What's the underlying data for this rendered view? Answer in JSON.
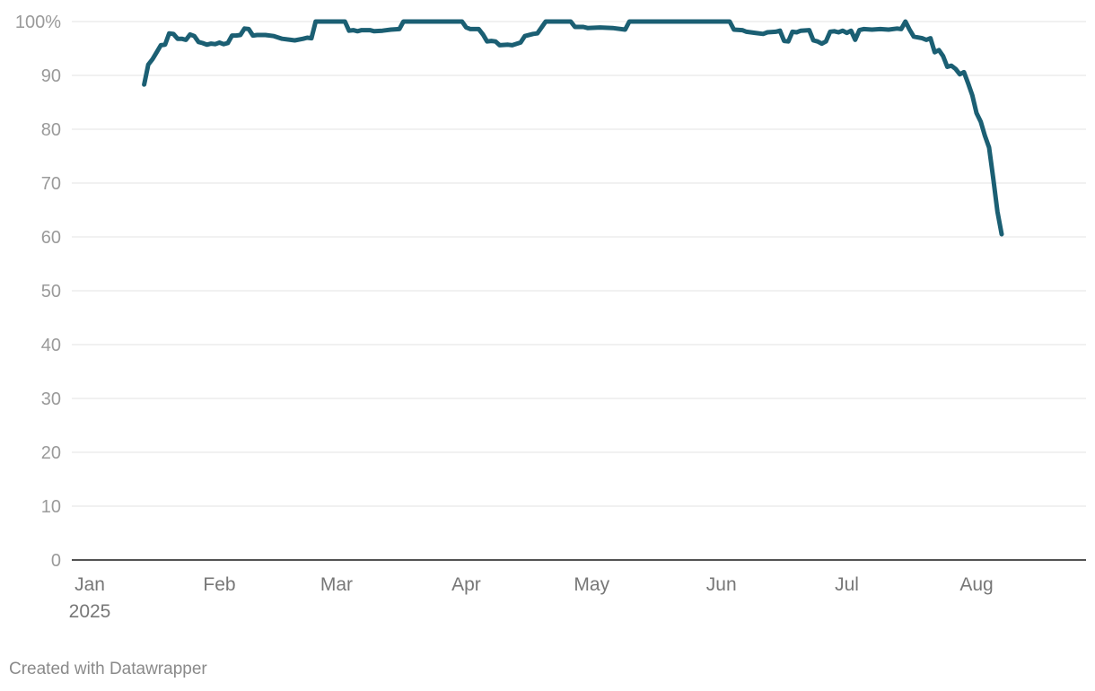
{
  "chart_data": {
    "type": "line",
    "title": "",
    "xlabel": "",
    "ylabel": "",
    "ylim": [
      0,
      100
    ],
    "y_ticks": [
      {
        "value": 0,
        "label": "0"
      },
      {
        "value": 10,
        "label": "10"
      },
      {
        "value": 20,
        "label": "20"
      },
      {
        "value": 30,
        "label": "30"
      },
      {
        "value": 40,
        "label": "40"
      },
      {
        "value": 50,
        "label": "50"
      },
      {
        "value": 60,
        "label": "60"
      },
      {
        "value": 70,
        "label": "70"
      },
      {
        "value": 80,
        "label": "80"
      },
      {
        "value": 90,
        "label": "90"
      },
      {
        "value": 100,
        "label": "100%"
      }
    ],
    "x_range": [
      "2025-01-01",
      "2025-08-31"
    ],
    "x_ticks": [
      {
        "date": "2025-01-01",
        "label": "Jan",
        "sublabel": "2025"
      },
      {
        "date": "2025-02-01",
        "label": "Feb"
      },
      {
        "date": "2025-03-01",
        "label": "Mar"
      },
      {
        "date": "2025-04-01",
        "label": "Apr"
      },
      {
        "date": "2025-05-01",
        "label": "May"
      },
      {
        "date": "2025-06-01",
        "label": "Jun"
      },
      {
        "date": "2025-07-01",
        "label": "Jul"
      },
      {
        "date": "2025-08-01",
        "label": "Aug"
      }
    ],
    "grid": true,
    "legend": "none",
    "series": [
      {
        "color": "#1b5f73",
        "points": [
          [
            "2025-01-14",
            88.3
          ],
          [
            "2025-01-15",
            92.0
          ],
          [
            "2025-01-16",
            93.0
          ],
          [
            "2025-01-17",
            94.3
          ],
          [
            "2025-01-18",
            95.6
          ],
          [
            "2025-01-19",
            95.7
          ],
          [
            "2025-01-20",
            97.8
          ],
          [
            "2025-01-21",
            97.7
          ],
          [
            "2025-01-22",
            96.8
          ],
          [
            "2025-01-23",
            96.8
          ],
          [
            "2025-01-24",
            96.6
          ],
          [
            "2025-01-25",
            97.6
          ],
          [
            "2025-01-26",
            97.3
          ],
          [
            "2025-01-27",
            96.2
          ],
          [
            "2025-01-28",
            96.0
          ],
          [
            "2025-01-29",
            95.7
          ],
          [
            "2025-01-30",
            95.9
          ],
          [
            "2025-01-31",
            95.8
          ],
          [
            "2025-02-01",
            96.1
          ],
          [
            "2025-02-02",
            95.8
          ],
          [
            "2025-02-03",
            96.0
          ],
          [
            "2025-02-04",
            97.4
          ],
          [
            "2025-02-05",
            97.4
          ],
          [
            "2025-02-06",
            97.5
          ],
          [
            "2025-02-07",
            98.7
          ],
          [
            "2025-02-08",
            98.6
          ],
          [
            "2025-02-09",
            97.4
          ],
          [
            "2025-02-10",
            97.5
          ],
          [
            "2025-02-12",
            97.5
          ],
          [
            "2025-02-14",
            97.3
          ],
          [
            "2025-02-16",
            96.8
          ],
          [
            "2025-02-18",
            96.6
          ],
          [
            "2025-02-19",
            96.5
          ],
          [
            "2025-02-21",
            96.8
          ],
          [
            "2025-02-22",
            97.0
          ],
          [
            "2025-02-23",
            96.9
          ],
          [
            "2025-02-24",
            100.0
          ],
          [
            "2025-03-03",
            100.0
          ],
          [
            "2025-03-04",
            98.3
          ],
          [
            "2025-03-05",
            98.4
          ],
          [
            "2025-03-06",
            98.2
          ],
          [
            "2025-03-07",
            98.4
          ],
          [
            "2025-03-09",
            98.4
          ],
          [
            "2025-03-10",
            98.2
          ],
          [
            "2025-03-12",
            98.3
          ],
          [
            "2025-03-14",
            98.5
          ],
          [
            "2025-03-16",
            98.6
          ],
          [
            "2025-03-17",
            100.0
          ],
          [
            "2025-03-31",
            100.0
          ],
          [
            "2025-04-01",
            98.9
          ],
          [
            "2025-04-02",
            98.6
          ],
          [
            "2025-04-04",
            98.6
          ],
          [
            "2025-04-05",
            97.6
          ],
          [
            "2025-04-06",
            96.3
          ],
          [
            "2025-04-07",
            96.4
          ],
          [
            "2025-04-08",
            96.3
          ],
          [
            "2025-04-09",
            95.6
          ],
          [
            "2025-04-11",
            95.7
          ],
          [
            "2025-04-12",
            95.6
          ],
          [
            "2025-04-14",
            96.1
          ],
          [
            "2025-04-15",
            97.3
          ],
          [
            "2025-04-17",
            97.7
          ],
          [
            "2025-04-18",
            97.8
          ],
          [
            "2025-04-20",
            100.0
          ],
          [
            "2025-04-26",
            100.0
          ],
          [
            "2025-04-27",
            99.0
          ],
          [
            "2025-04-29",
            99.0
          ],
          [
            "2025-04-30",
            98.8
          ],
          [
            "2025-05-03",
            98.9
          ],
          [
            "2025-05-06",
            98.8
          ],
          [
            "2025-05-09",
            98.5
          ],
          [
            "2025-05-10",
            100.0
          ],
          [
            "2025-06-03",
            100.0
          ],
          [
            "2025-06-04",
            98.5
          ],
          [
            "2025-06-06",
            98.4
          ],
          [
            "2025-06-07",
            98.1
          ],
          [
            "2025-06-09",
            97.9
          ],
          [
            "2025-06-11",
            97.7
          ],
          [
            "2025-06-12",
            98.0
          ],
          [
            "2025-06-14",
            98.1
          ],
          [
            "2025-06-15",
            98.3
          ],
          [
            "2025-06-16",
            96.4
          ],
          [
            "2025-06-17",
            96.3
          ],
          [
            "2025-06-18",
            98.1
          ],
          [
            "2025-06-19",
            98.0
          ],
          [
            "2025-06-20",
            98.3
          ],
          [
            "2025-06-22",
            98.4
          ],
          [
            "2025-06-23",
            96.5
          ],
          [
            "2025-06-24",
            96.3
          ],
          [
            "2025-06-25",
            95.9
          ],
          [
            "2025-06-26",
            96.3
          ],
          [
            "2025-06-27",
            98.1
          ],
          [
            "2025-06-28",
            98.2
          ],
          [
            "2025-06-29",
            98.0
          ],
          [
            "2025-06-30",
            98.3
          ],
          [
            "2025-07-01",
            97.9
          ],
          [
            "2025-07-02",
            98.3
          ],
          [
            "2025-07-03",
            96.6
          ],
          [
            "2025-07-04",
            98.4
          ],
          [
            "2025-07-05",
            98.6
          ],
          [
            "2025-07-07",
            98.5
          ],
          [
            "2025-07-09",
            98.6
          ],
          [
            "2025-07-11",
            98.5
          ],
          [
            "2025-07-13",
            98.7
          ],
          [
            "2025-07-14",
            98.6
          ],
          [
            "2025-07-15",
            100.0
          ],
          [
            "2025-07-16",
            98.5
          ],
          [
            "2025-07-17",
            97.2
          ],
          [
            "2025-07-19",
            96.9
          ],
          [
            "2025-07-20",
            96.6
          ],
          [
            "2025-07-21",
            96.9
          ],
          [
            "2025-07-22",
            94.3
          ],
          [
            "2025-07-23",
            94.7
          ],
          [
            "2025-07-24",
            93.6
          ],
          [
            "2025-07-25",
            91.6
          ],
          [
            "2025-07-26",
            91.8
          ],
          [
            "2025-07-27",
            91.2
          ],
          [
            "2025-07-28",
            90.2
          ],
          [
            "2025-07-29",
            90.6
          ],
          [
            "2025-07-30",
            88.5
          ],
          [
            "2025-07-31",
            86.3
          ],
          [
            "2025-08-01",
            83.0
          ],
          [
            "2025-08-02",
            81.4
          ],
          [
            "2025-08-03",
            78.8
          ],
          [
            "2025-08-04",
            76.6
          ],
          [
            "2025-08-05",
            70.9
          ],
          [
            "2025-08-06",
            64.7
          ],
          [
            "2025-08-07",
            60.5
          ]
        ]
      }
    ]
  },
  "footer": {
    "credit": "Created with Datawrapper"
  }
}
